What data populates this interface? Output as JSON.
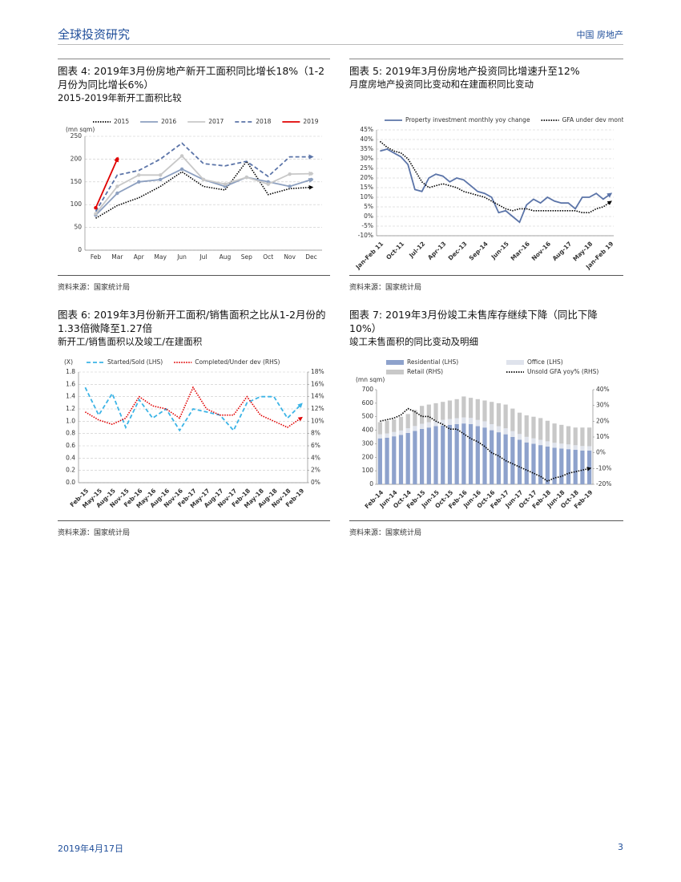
{
  "header": {
    "left": "全球投资研究",
    "right": "中国 房地产"
  },
  "footer": {
    "date": "2019年4月17日",
    "page": "3"
  },
  "chart_data": [
    {
      "type": "line",
      "title": "图表 4: 2019年3月份房地产新开工面积同比增长18%（1-2月份为同比增长6%）",
      "subtitle": "2015-2019年新开工面积比较",
      "source": "资料来源：国家统计局",
      "ylabel": "(mn sqm)",
      "legend": "top",
      "grid": true,
      "categories": [
        "Feb",
        "Mar",
        "Apr",
        "May",
        "Jun",
        "Jul",
        "Aug",
        "Sep",
        "Oct",
        "Nov",
        "Dec"
      ],
      "ylim": [
        0,
        250
      ],
      "yticks": [
        0,
        50,
        100,
        150,
        200,
        250
      ],
      "series": [
        {
          "name": "2015",
          "color": "#000000",
          "style": "dotted",
          "values": [
            70,
            98,
            115,
            140,
            172,
            140,
            132,
            195,
            122,
            135,
            138
          ]
        },
        {
          "name": "2016",
          "color": "#8da0c0",
          "style": "solid",
          "marker": true,
          "values": [
            77,
            125,
            150,
            155,
            178,
            155,
            140,
            160,
            150,
            140,
            155
          ]
        },
        {
          "name": "2017",
          "color": "#c8c8c8",
          "style": "solid",
          "marker": true,
          "values": [
            80,
            140,
            165,
            165,
            207,
            155,
            145,
            160,
            145,
            167,
            168
          ]
        },
        {
          "name": "2018",
          "color": "#5b74a8",
          "style": "dashed",
          "values": [
            85,
            165,
            175,
            200,
            235,
            190,
            185,
            195,
            162,
            205,
            205
          ]
        },
        {
          "name": "2019",
          "color": "#e00000",
          "style": "solid",
          "marker": true,
          "values": [
            93,
            200,
            null,
            null,
            null,
            null,
            null,
            null,
            null,
            null,
            null
          ]
        }
      ]
    },
    {
      "type": "line",
      "title": "图表 5: 2019年3月份房地产投资同比增速升至12%",
      "subtitle": "月度房地产投资同比变动和在建面积同比变动",
      "source": "资料来源：国家统计局",
      "legend": "top",
      "grid": true,
      "rotate_xlabels": true,
      "categories": [
        "Jan-Feb 11",
        null,
        null,
        "Oct-11",
        null,
        null,
        "Jul-12",
        null,
        null,
        "Apr-13",
        null,
        null,
        "Dec-13",
        null,
        null,
        "Sep-14",
        null,
        null,
        "Jun-15",
        null,
        null,
        "Mar-16",
        null,
        null,
        "Nov-16",
        null,
        null,
        "Aug-17",
        null,
        null,
        "May-18",
        null,
        null,
        "Jan-Feb 19"
      ],
      "ylim": [
        -10,
        45
      ],
      "yticks": [
        {
          "value": -10,
          "label": "-10%"
        },
        {
          "value": -5,
          "label": "-5%"
        },
        {
          "value": 0,
          "label": "0%"
        },
        {
          "value": 5,
          "label": "5%"
        },
        {
          "value": 10,
          "label": "10%"
        },
        {
          "value": 15,
          "label": "15%"
        },
        {
          "value": 20,
          "label": "20%"
        },
        {
          "value": 25,
          "label": "25%"
        },
        {
          "value": 30,
          "label": "30%"
        },
        {
          "value": 35,
          "label": "35%"
        },
        {
          "value": 40,
          "label": "40%"
        },
        {
          "value": 45,
          "label": "45%"
        }
      ],
      "series": [
        {
          "name": "Property investment monthly yoy change",
          "color": "#5b74a8",
          "style": "solid",
          "values": [
            34,
            35,
            33,
            31,
            27,
            14,
            13,
            20,
            22,
            21,
            18,
            20,
            19,
            16,
            13,
            12,
            10,
            2,
            3,
            0,
            -3,
            6,
            9,
            7,
            10,
            8,
            7,
            7,
            4,
            10,
            10,
            12,
            9,
            11.6
          ]
        },
        {
          "name": "GFA under dev monthly yoy change",
          "color": "#000000",
          "style": "dotted",
          "values": [
            39,
            36,
            34,
            33,
            30,
            24,
            18,
            15,
            16,
            17,
            16,
            15,
            13,
            12,
            11,
            10,
            8,
            6,
            4,
            3,
            4,
            4,
            3,
            3,
            3,
            3,
            3,
            3,
            3,
            2,
            2,
            4,
            5,
            7.5
          ]
        }
      ]
    },
    {
      "type": "line",
      "title": "图表 6: 2019年3月份新开工面积/销售面积之比从1-2月份的1.33倍微降至1.27倍",
      "subtitle": "新开工/销售面积以及竣工/在建面积",
      "source": "资料来源：国家统计局",
      "ylabel": "(X)",
      "legend": "top",
      "grid": true,
      "rotate_xlabels": true,
      "categories": [
        "Feb-15",
        "May-15",
        "Aug-15",
        "Nov-15",
        "Feb-16",
        "May-16",
        "Aug-16",
        "Nov-16",
        "Feb-17",
        "May-17",
        "Aug-17",
        "Nov-17",
        "Feb-18",
        "May-18",
        "Aug-18",
        "Nov-18",
        "Feb-19"
      ],
      "ylim": [
        0,
        1.8
      ],
      "yticks": [
        {
          "value": 0,
          "label": "0.0"
        },
        0.2,
        0.4,
        0.6,
        0.8,
        {
          "value": 1,
          "label": "1.0"
        },
        1.2,
        1.4,
        1.6,
        1.8
      ],
      "y2lim": [
        0,
        18
      ],
      "y2ticks": [
        {
          "value": 0,
          "label": "0%"
        },
        {
          "value": 2,
          "label": "2%"
        },
        {
          "value": 4,
          "label": "4%"
        },
        {
          "value": 6,
          "label": "6%"
        },
        {
          "value": 8,
          "label": "8%"
        },
        {
          "value": 10,
          "label": "10%"
        },
        {
          "value": 12,
          "label": "12%"
        },
        {
          "value": 14,
          "label": "14%"
        },
        {
          "value": 16,
          "label": "16%"
        },
        {
          "value": 18,
          "label": "18%"
        }
      ],
      "series": [
        {
          "name": "Started/Sold (LHS)",
          "color": "#3cb4e6",
          "style": "dashed",
          "values": [
            1.55,
            1.1,
            1.45,
            0.9,
            1.35,
            1.05,
            1.2,
            0.85,
            1.2,
            1.15,
            1.1,
            0.85,
            1.3,
            1.4,
            1.4,
            1.05,
            1.27
          ]
        },
        {
          "name": "Completed/Under dev (RHS)",
          "color": "#e00000",
          "style": "dotted",
          "axis": "y2",
          "values": [
            11.5,
            10.2,
            9.5,
            10.5,
            14,
            12.5,
            12,
            10.5,
            15.5,
            12,
            11,
            11,
            14,
            11,
            10,
            9,
            10.5
          ]
        }
      ]
    },
    {
      "type": "bar",
      "stacked": true,
      "title": "图表 7: 2019年3月份竣工未售库存继续下降（同比下降10%）",
      "subtitle": "竣工未售面积的同比变动及明细",
      "source": "资料来源：国家统计局",
      "ylabel": "(mn sqm)",
      "legend": "top",
      "grid": false,
      "rotate_xlabels": true,
      "categories": [
        "Feb-14",
        null,
        "Jun-14",
        null,
        "Oct-14",
        null,
        "Feb-15",
        null,
        "Jun-15",
        null,
        "Oct-15",
        null,
        "Feb-16",
        null,
        "Jun-16",
        null,
        "Oct-16",
        null,
        "Feb-17",
        null,
        "Jun-17",
        null,
        "Oct-17",
        null,
        "Feb-18",
        null,
        "Jun-18",
        null,
        "Oct-18",
        null,
        "Feb-19"
      ],
      "ylim": [
        0,
        700
      ],
      "yticks": [
        0,
        100,
        200,
        300,
        400,
        500,
        600,
        700
      ],
      "y2lim": [
        -20,
        40
      ],
      "y2ticks": [
        {
          "value": -20,
          "label": "-20%"
        },
        {
          "value": -10,
          "label": "-10%"
        },
        {
          "value": 0,
          "label": "0%"
        },
        {
          "value": 10,
          "label": "10%"
        },
        {
          "value": 20,
          "label": "20%"
        },
        {
          "value": 30,
          "label": "30%"
        },
        {
          "value": 40,
          "label": "40%"
        }
      ],
      "series": [
        {
          "name": "Residential (LHS)",
          "color": "#8ea2cc",
          "values": [
            340,
            345,
            355,
            365,
            380,
            395,
            410,
            420,
            430,
            435,
            440,
            445,
            450,
            445,
            430,
            420,
            400,
            385,
            370,
            350,
            330,
            310,
            300,
            290,
            280,
            270,
            265,
            260,
            255,
            250,
            250
          ]
        },
        {
          "name": "Office (LHS)",
          "color": "#dfe3ec",
          "values": [
            30,
            31,
            32,
            33,
            35,
            36,
            38,
            39,
            40,
            42,
            43,
            44,
            45,
            46,
            46,
            46,
            45,
            45,
            44,
            43,
            42,
            41,
            40,
            39,
            38,
            37,
            36,
            35,
            34,
            33,
            32
          ]
        },
        {
          "name": "Retail (RHS)",
          "color": "#c8c8c8",
          "values": [
            90,
            94,
            93,
            102,
            105,
            119,
            132,
            131,
            130,
            133,
            137,
            141,
            155,
            149,
            154,
            154,
            165,
            170,
            176,
            167,
            158,
            159,
            160,
            161,
            152,
            143,
            139,
            135,
            131,
            137,
            138
          ]
        },
        {
          "name": "Unsold GFA yoy% (RHS)",
          "color": "#000000",
          "style": "dotted",
          "type": "line",
          "axis": "y2",
          "values": [
            20,
            21,
            22,
            24,
            28,
            26,
            23,
            23,
            20,
            18,
            15,
            15,
            12,
            9,
            7,
            4,
            0,
            -2,
            -5,
            -7,
            -9,
            -11,
            -13,
            -15,
            -18,
            -16,
            -15,
            -13,
            -12,
            -11,
            -10
          ]
        }
      ]
    }
  ]
}
